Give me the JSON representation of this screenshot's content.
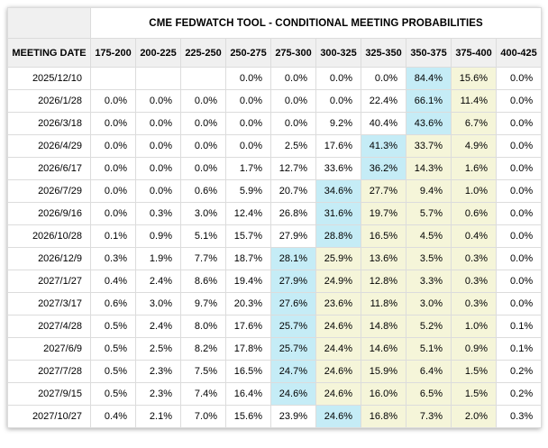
{
  "title": "CME FEDWATCH TOOL - CONDITIONAL MEETING PROBABILITIES",
  "meeting_date_header": "MEETING DATE",
  "rate_range_headers": [
    "175-200",
    "200-225",
    "225-250",
    "250-275",
    "275-300",
    "300-325",
    "325-350",
    "350-375",
    "375-400",
    "400-425"
  ],
  "colors": {
    "highlight_max_blue": "#c5ecf6",
    "highlight_tail_yellow": "#f5f5d9",
    "header_bg": "#f0f0f0",
    "border": "#dcdcdc",
    "text": "#000000"
  },
  "rows": [
    {
      "date": "2025/12/10",
      "values": [
        "",
        "",
        "",
        "0.0%",
        "0.0%",
        "0.0%",
        "0.0%",
        "84.4%",
        "15.6%",
        "0.0%"
      ],
      "max_index": 7
    },
    {
      "date": "2026/1/28",
      "values": [
        "0.0%",
        "0.0%",
        "0.0%",
        "0.0%",
        "0.0%",
        "0.0%",
        "22.4%",
        "66.1%",
        "11.4%",
        "0.0%"
      ],
      "max_index": 7
    },
    {
      "date": "2026/3/18",
      "values": [
        "0.0%",
        "0.0%",
        "0.0%",
        "0.0%",
        "0.0%",
        "9.2%",
        "40.4%",
        "43.6%",
        "6.7%",
        "0.0%"
      ],
      "max_index": 7
    },
    {
      "date": "2026/4/29",
      "values": [
        "0.0%",
        "0.0%",
        "0.0%",
        "0.0%",
        "2.5%",
        "17.6%",
        "41.3%",
        "33.7%",
        "4.9%",
        "0.0%"
      ],
      "max_index": 6
    },
    {
      "date": "2026/6/17",
      "values": [
        "0.0%",
        "0.0%",
        "0.0%",
        "1.7%",
        "12.7%",
        "33.6%",
        "36.2%",
        "14.3%",
        "1.6%",
        "0.0%"
      ],
      "max_index": 6
    },
    {
      "date": "2026/7/29",
      "values": [
        "0.0%",
        "0.0%",
        "0.6%",
        "5.9%",
        "20.7%",
        "34.6%",
        "27.7%",
        "9.4%",
        "1.0%",
        "0.0%"
      ],
      "max_index": 5
    },
    {
      "date": "2026/9/16",
      "values": [
        "0.0%",
        "0.3%",
        "3.0%",
        "12.4%",
        "26.8%",
        "31.6%",
        "19.7%",
        "5.7%",
        "0.6%",
        "0.0%"
      ],
      "max_index": 5
    },
    {
      "date": "2026/10/28",
      "values": [
        "0.1%",
        "0.9%",
        "5.1%",
        "15.7%",
        "27.9%",
        "28.8%",
        "16.5%",
        "4.5%",
        "0.4%",
        "0.0%"
      ],
      "max_index": 5
    },
    {
      "date": "2026/12/9",
      "values": [
        "0.3%",
        "1.9%",
        "7.7%",
        "18.7%",
        "28.1%",
        "25.9%",
        "13.6%",
        "3.5%",
        "0.3%",
        "0.0%"
      ],
      "max_index": 4
    },
    {
      "date": "2027/1/27",
      "values": [
        "0.4%",
        "2.4%",
        "8.6%",
        "19.4%",
        "27.9%",
        "24.9%",
        "12.8%",
        "3.3%",
        "0.3%",
        "0.0%"
      ],
      "max_index": 4
    },
    {
      "date": "2027/3/17",
      "values": [
        "0.6%",
        "3.0%",
        "9.7%",
        "20.3%",
        "27.6%",
        "23.6%",
        "11.8%",
        "3.0%",
        "0.3%",
        "0.0%"
      ],
      "max_index": 4
    },
    {
      "date": "2027/4/28",
      "values": [
        "0.5%",
        "2.4%",
        "8.0%",
        "17.6%",
        "25.7%",
        "24.6%",
        "14.8%",
        "5.2%",
        "1.0%",
        "0.1%"
      ],
      "max_index": 4
    },
    {
      "date": "2027/6/9",
      "values": [
        "0.5%",
        "2.5%",
        "8.2%",
        "17.8%",
        "25.7%",
        "24.4%",
        "14.6%",
        "5.1%",
        "0.9%",
        "0.1%"
      ],
      "max_index": 4
    },
    {
      "date": "2027/7/28",
      "values": [
        "0.5%",
        "2.3%",
        "7.5%",
        "16.5%",
        "24.7%",
        "24.6%",
        "15.9%",
        "6.4%",
        "1.5%",
        "0.2%"
      ],
      "max_index": 4
    },
    {
      "date": "2027/9/15",
      "values": [
        "0.5%",
        "2.3%",
        "7.4%",
        "16.4%",
        "24.6%",
        "24.6%",
        "16.0%",
        "6.5%",
        "1.5%",
        "0.2%"
      ],
      "max_index": 4
    },
    {
      "date": "2027/10/27",
      "values": [
        "0.4%",
        "2.1%",
        "7.0%",
        "15.6%",
        "23.9%",
        "24.6%",
        "16.8%",
        "7.3%",
        "2.0%",
        "0.3%"
      ],
      "max_index": 5
    }
  ]
}
